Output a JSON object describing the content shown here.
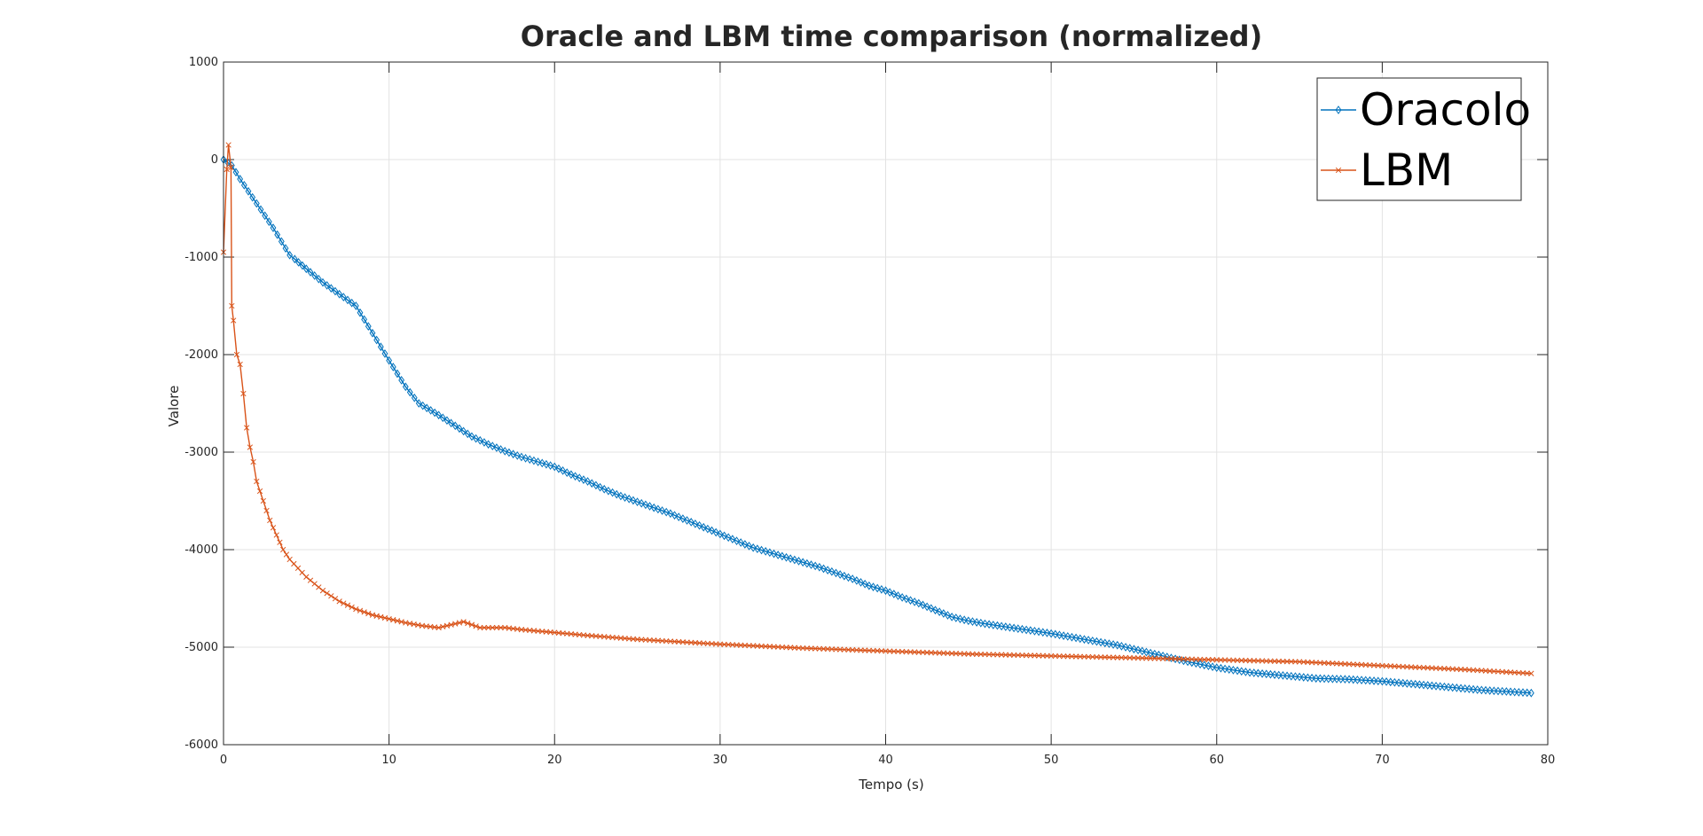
{
  "chart_data": {
    "type": "line",
    "title": "Oracle and LBM time comparison (normalized)",
    "xlabel": "Tempo (s)",
    "ylabel": "Valore",
    "xlim": [
      0,
      80
    ],
    "ylim": [
      -6000,
      1000
    ],
    "xticks": [
      0,
      10,
      20,
      30,
      40,
      50,
      60,
      70,
      80
    ],
    "yticks": [
      1000,
      0,
      -1000,
      -2000,
      -3000,
      -4000,
      -5000,
      -6000
    ],
    "xtick_labels": [
      "0",
      "10",
      "20",
      "30",
      "40",
      "50",
      "60",
      "70",
      "80"
    ],
    "ytick_labels": [
      "1000",
      "0",
      "-1000",
      "-2000",
      "-3000",
      "-4000",
      "-5000",
      "-6000"
    ],
    "grid": true,
    "legend_position": "top-right",
    "series": [
      {
        "name": "Oracolo",
        "color": "#0072BD",
        "marker": "diamond",
        "x": [
          0,
          0.5,
          1,
          2,
          3,
          4,
          4.3,
          5,
          6,
          7,
          8,
          9,
          10,
          11,
          11.8,
          13,
          14,
          15,
          16,
          17,
          18,
          19,
          20,
          21,
          22,
          23,
          24,
          25,
          26,
          27,
          28,
          29,
          30,
          31,
          32,
          33,
          34,
          35,
          36,
          37,
          38,
          39,
          40,
          41,
          42,
          43,
          44,
          45,
          46,
          48,
          50,
          52,
          54,
          56,
          58,
          60,
          62,
          64,
          66,
          68,
          70,
          72,
          74,
          76,
          78,
          79
        ],
        "y": [
          0,
          -60,
          -200,
          -450,
          -700,
          -980,
          -1020,
          -1120,
          -1260,
          -1380,
          -1500,
          -1780,
          -2060,
          -2330,
          -2500,
          -2620,
          -2730,
          -2840,
          -2920,
          -2990,
          -3050,
          -3100,
          -3150,
          -3230,
          -3300,
          -3380,
          -3450,
          -3510,
          -3570,
          -3630,
          -3700,
          -3770,
          -3840,
          -3910,
          -3980,
          -4030,
          -4080,
          -4130,
          -4180,
          -4240,
          -4300,
          -4370,
          -4420,
          -4490,
          -4550,
          -4620,
          -4690,
          -4730,
          -4760,
          -4810,
          -4860,
          -4920,
          -4980,
          -5060,
          -5140,
          -5210,
          -5260,
          -5290,
          -5320,
          -5330,
          -5350,
          -5380,
          -5410,
          -5440,
          -5460,
          -5470
        ]
      },
      {
        "name": "LBM",
        "color": "#D95319",
        "marker": "x",
        "x": [
          0,
          0.2,
          0.3,
          0.45,
          0.5,
          0.6,
          0.8,
          1,
          1.2,
          1.4,
          1.6,
          1.8,
          2,
          2.4,
          2.8,
          3.2,
          3.6,
          4,
          5,
          6,
          7,
          8,
          9,
          10,
          11,
          12,
          13,
          13.5,
          14,
          14.5,
          15,
          15.5,
          16,
          17,
          18,
          20,
          22,
          25,
          28,
          30,
          35,
          40,
          45,
          50,
          55,
          60,
          65,
          70,
          75,
          79
        ],
        "y": [
          -950,
          -100,
          150,
          -80,
          -1500,
          -1650,
          -2000,
          -2100,
          -2400,
          -2750,
          -2950,
          -3100,
          -3300,
          -3500,
          -3700,
          -3850,
          -4000,
          -4100,
          -4280,
          -4420,
          -4530,
          -4610,
          -4670,
          -4710,
          -4750,
          -4780,
          -4800,
          -4780,
          -4760,
          -4740,
          -4770,
          -4800,
          -4800,
          -4800,
          -4820,
          -4850,
          -4880,
          -4920,
          -4950,
          -4970,
          -5010,
          -5040,
          -5070,
          -5090,
          -5110,
          -5130,
          -5150,
          -5190,
          -5230,
          -5270
        ]
      }
    ]
  }
}
